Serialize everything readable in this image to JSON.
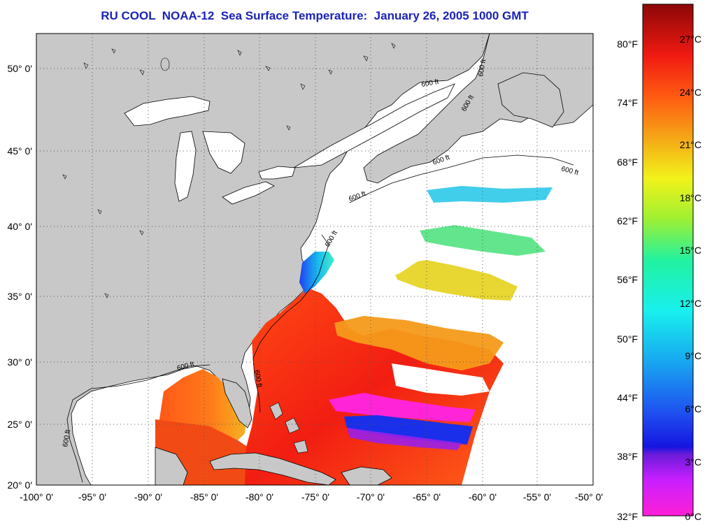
{
  "title": "RU COOL  NOAA-12  Sea Surface Temperature:  January 26, 2005 1000 GMT",
  "lat_ticks": [
    "50° 0'",
    "45° 0'",
    "40° 0'",
    "35° 0'",
    "30° 0'",
    "25° 0'",
    "20° 0'"
  ],
  "lon_ticks": [
    "-100° 0'",
    "-95° 0'",
    "-90° 0'",
    "-85° 0'",
    "-80° 0'",
    "-75° 0'",
    "-70° 0'",
    "-65° 0'",
    "-60° 0'",
    "-55° 0'",
    "-50° 0'"
  ],
  "contour_label": "600 ft",
  "colorbar": {
    "fahrenheit": [
      "80°F",
      "74°F",
      "68°F",
      "62°F",
      "56°F",
      "50°F",
      "44°F",
      "38°F",
      "32°F"
    ],
    "celsius": [
      "27°C",
      "24°C",
      "21°C",
      "18°C",
      "15°C",
      "12°C",
      "9°C",
      "6°C",
      "3°C",
      "0°C"
    ]
  },
  "colors": {
    "title": "#1a23b8",
    "land": "#c8c8c8",
    "ocean": "#ffffff",
    "grid": "#555555"
  }
}
